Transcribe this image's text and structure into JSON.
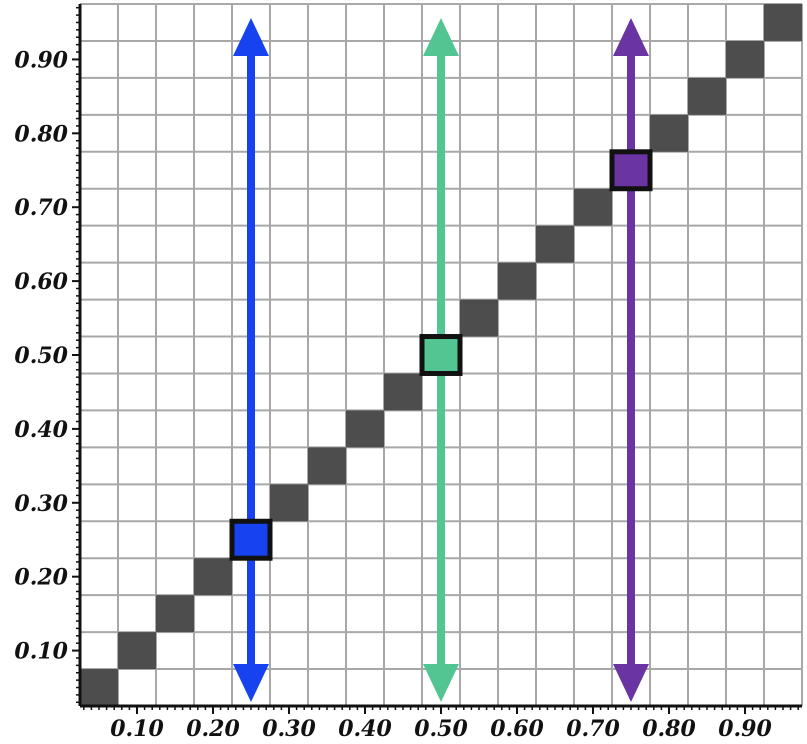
{
  "chart_data": {
    "type": "heatmap",
    "title": "",
    "xlabel": "",
    "ylabel": "",
    "xlim": [
      0.025,
      0.975
    ],
    "ylim": [
      0.025,
      0.975
    ],
    "grid": true,
    "grid_cells_per_axis": 19,
    "x_ticks": [
      "0.10",
      "0.20",
      "0.30",
      "0.40",
      "0.50",
      "0.60",
      "0.70",
      "0.80",
      "0.90"
    ],
    "y_ticks": [
      "0.10",
      "0.20",
      "0.30",
      "0.40",
      "0.50",
      "0.60",
      "0.70",
      "0.80",
      "0.90"
    ],
    "x_tick_values": [
      0.1,
      0.2,
      0.3,
      0.4,
      0.5,
      0.6,
      0.7,
      0.8,
      0.9
    ],
    "y_tick_values": [
      0.1,
      0.2,
      0.3,
      0.4,
      0.5,
      0.6,
      0.7,
      0.8,
      0.9
    ],
    "diagonal_cells": [
      [
        0.05,
        0.05
      ],
      [
        0.1,
        0.1
      ],
      [
        0.15,
        0.15
      ],
      [
        0.2,
        0.2
      ],
      [
        0.25,
        0.25
      ],
      [
        0.3,
        0.3
      ],
      [
        0.35,
        0.35
      ],
      [
        0.4,
        0.4
      ],
      [
        0.45,
        0.45
      ],
      [
        0.5,
        0.5
      ],
      [
        0.55,
        0.55
      ],
      [
        0.6,
        0.6
      ],
      [
        0.65,
        0.65
      ],
      [
        0.7,
        0.7
      ],
      [
        0.75,
        0.75
      ],
      [
        0.8,
        0.8
      ],
      [
        0.85,
        0.85
      ],
      [
        0.9,
        0.9
      ],
      [
        0.95,
        0.95
      ]
    ],
    "diagonal_color": "#4d4d4d",
    "highlights": [
      {
        "x": 0.25,
        "y": 0.25,
        "color": "#1642f0"
      },
      {
        "x": 0.5,
        "y": 0.5,
        "color": "#52c592"
      },
      {
        "x": 0.75,
        "y": 0.75,
        "color": "#6a34a2"
      }
    ],
    "arrows": [
      {
        "x": 0.25,
        "color": "#1642f0"
      },
      {
        "x": 0.5,
        "color": "#52c592"
      },
      {
        "x": 0.75,
        "color": "#6a34a2"
      }
    ]
  }
}
